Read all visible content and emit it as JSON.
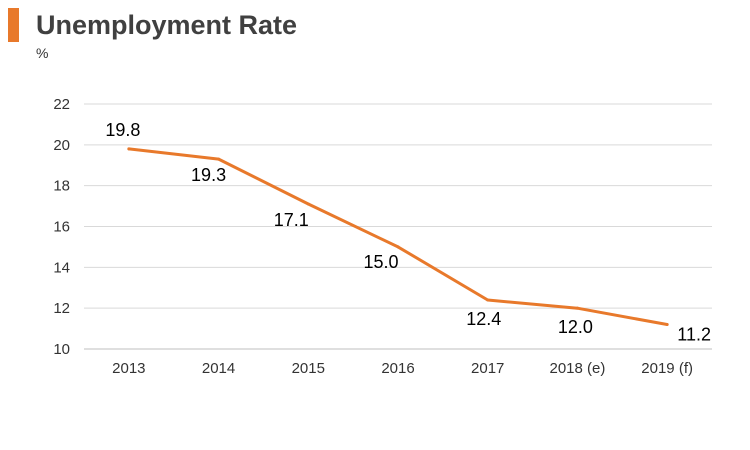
{
  "header": {
    "title": "Unemployment Rate",
    "unit": "%",
    "accent_color": "#E8792B"
  },
  "chart_data": {
    "type": "line",
    "title": "Unemployment Rate",
    "ylabel": "%",
    "xlabel": "",
    "categories": [
      "2013",
      "2014",
      "2015",
      "2016",
      "2017",
      "2018 (e)",
      "2019 (f)"
    ],
    "series": [
      {
        "values": [
          19.8,
          19.3,
          17.1,
          15.0,
          12.4,
          12.0,
          11.2
        ],
        "color": "#E8792B"
      }
    ],
    "data_labels": [
      "19.8",
      "19.3",
      "17.1",
      "15.0",
      "12.4",
      "12.0",
      "11.2"
    ],
    "ylim": [
      10,
      22
    ],
    "yticks": [
      10,
      12,
      14,
      16,
      18,
      20,
      22
    ],
    "grid": true,
    "legend": "none"
  }
}
